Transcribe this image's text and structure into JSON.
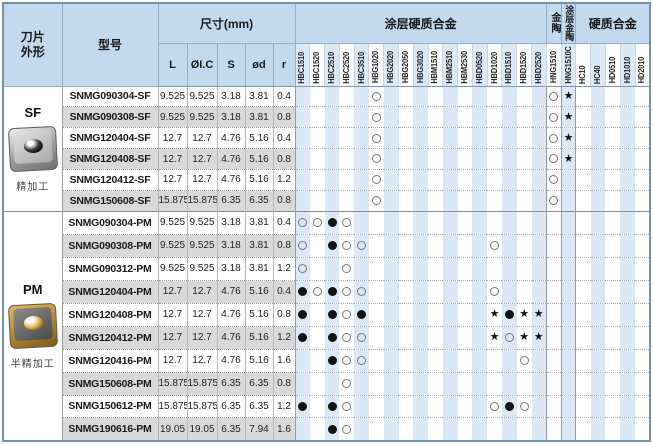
{
  "colors": {
    "header_bg": "#c3d9ee",
    "column_stripe": "#dbe9f6",
    "alt_row": "#d9d9d9",
    "table_border": "#7292ad",
    "mark_black": "#121212",
    "mark_ring_gray": "#787878"
  },
  "header": {
    "blade_shape": "刀片\n外形",
    "model": "型号",
    "dimensions": "尺寸(mm)",
    "dim_cols": [
      "L",
      "ØI.C",
      "S",
      "ød",
      "r"
    ],
    "groups": {
      "coated_carbide": "涂层硬质合金",
      "cermet": "金陶",
      "coated_cermet": "涂层金陶",
      "carbide": "硬质合金"
    },
    "group_spans": {
      "coated_carbide": 17,
      "cermet": 1,
      "coated_cermet": 1,
      "carbide": 5
    },
    "grade_cols": [
      "HBC1510",
      "HBC1520",
      "HBC2510",
      "HBC2520",
      "HBC3510",
      "HBG1020",
      "HBG2020",
      "HBG2050",
      "HBG3020",
      "HBM1510",
      "HBM2510",
      "HBM2530",
      "HBD0520",
      "HBD1020",
      "HBD1510",
      "HBD1520",
      "HBD2520",
      "HNG1510",
      "HNG1510C",
      "HC10",
      "HC40",
      "HD0510",
      "HD1010",
      "HD2010"
    ]
  },
  "symbols": {
    "o": "open-circle",
    "f": "filled-circle",
    "s": "star"
  },
  "sections": [
    {
      "code": "SF",
      "process": "精加工",
      "insert_style": "silver",
      "rows": [
        {
          "model": "SNMG090304-SF",
          "dims": [
            "9.525",
            "9.525",
            "3.18",
            "3.81",
            "0.4"
          ],
          "marks": {
            "HBG1020": "o",
            "HNG1510": "o",
            "HNG1510C": "s"
          }
        },
        {
          "model": "SNMG090308-SF",
          "dims": [
            "9.525",
            "9.525",
            "3.18",
            "3.81",
            "0.8"
          ],
          "marks": {
            "HBG1020": "o",
            "HNG1510": "o",
            "HNG1510C": "s"
          }
        },
        {
          "model": "SNMG120404-SF",
          "dims": [
            "12.7",
            "12.7",
            "4.76",
            "5.16",
            "0.4"
          ],
          "marks": {
            "HBG1020": "o",
            "HNG1510": "o",
            "HNG1510C": "s"
          }
        },
        {
          "model": "SNMG120408-SF",
          "dims": [
            "12.7",
            "12.7",
            "4.76",
            "5.16",
            "0.8"
          ],
          "marks": {
            "HBG1020": "o",
            "HNG1510": "o",
            "HNG1510C": "s"
          }
        },
        {
          "model": "SNMG120412-SF",
          "dims": [
            "12.7",
            "12.7",
            "4.76",
            "5.16",
            "1.2"
          ],
          "marks": {
            "HBG1020": "o",
            "HNG1510": "o"
          }
        },
        {
          "model": "SNMG150608-SF",
          "dims": [
            "15.875",
            "15.875",
            "6.35",
            "6.35",
            "0.8"
          ],
          "marks": {
            "HBG1020": "o",
            "HNG1510": "o"
          }
        }
      ]
    },
    {
      "code": "PM",
      "process": "半精加工",
      "insert_style": "gold",
      "rows": [
        {
          "model": "SNMG090304-PM",
          "dims": [
            "9.525",
            "9.525",
            "3.18",
            "3.81",
            "0.4"
          ],
          "marks": {
            "HBC1510": "o",
            "HBC1520": "o",
            "HBC2510": "f",
            "HBC2520": "o"
          }
        },
        {
          "model": "SNMG090308-PM",
          "dims": [
            "9.525",
            "9.525",
            "3.18",
            "3.81",
            "0.8"
          ],
          "marks": {
            "HBC1510": "o",
            "HBC2510": "f",
            "HBC2520": "o",
            "HBC3510": "o",
            "HBD1020": "o"
          }
        },
        {
          "model": "SNMG090312-PM",
          "dims": [
            "9.525",
            "9.525",
            "3.18",
            "3.81",
            "1.2"
          ],
          "marks": {
            "HBC1510": "o",
            "HBC2520": "o"
          }
        },
        {
          "model": "SNMG120404-PM",
          "dims": [
            "12.7",
            "12.7",
            "4.76",
            "5.16",
            "0.4"
          ],
          "marks": {
            "HBC1510": "f",
            "HBC1520": "o",
            "HBC2510": "f",
            "HBC2520": "o",
            "HBC3510": "o",
            "HBD1020": "o"
          }
        },
        {
          "model": "SNMG120408-PM",
          "dims": [
            "12.7",
            "12.7",
            "4.76",
            "5.16",
            "0.8"
          ],
          "marks": {
            "HBC1510": "f",
            "HBC2510": "f",
            "HBC2520": "o",
            "HBC3510": "f",
            "HBD1020": "s",
            "HBD1510": "f",
            "HBD1520": "s",
            "HBD2520": "s"
          }
        },
        {
          "model": "SNMG120412-PM",
          "dims": [
            "12.7",
            "12.7",
            "4.76",
            "5.16",
            "1.2"
          ],
          "marks": {
            "HBC1510": "f",
            "HBC2510": "f",
            "HBC2520": "o",
            "HBC3510": "o",
            "HBD1020": "s",
            "HBD1510": "o",
            "HBD1520": "s",
            "HBD2520": "s"
          }
        },
        {
          "model": "SNMG120416-PM",
          "dims": [
            "12.7",
            "12.7",
            "4.76",
            "5.16",
            "1.6"
          ],
          "marks": {
            "HBC2510": "f",
            "HBC2520": "o",
            "HBC3510": "o",
            "HBD1520": "o"
          }
        },
        {
          "model": "SNMG150608-PM",
          "dims": [
            "15.875",
            "15.875",
            "6.35",
            "6.35",
            "0.8"
          ],
          "marks": {
            "HBC2520": "o"
          }
        },
        {
          "model": "SNMG150612-PM",
          "dims": [
            "15.875",
            "15.875",
            "6.35",
            "6.35",
            "1.2"
          ],
          "marks": {
            "HBC1510": "f",
            "HBC2510": "f",
            "HBC2520": "o",
            "HBD1020": "o",
            "HBD1510": "f",
            "HBD1520": "o"
          }
        },
        {
          "model": "SNMG190616-PM",
          "dims": [
            "19.05",
            "19.05",
            "6.35",
            "7.94",
            "1.6"
          ],
          "marks": {
            "HBC2510": "f",
            "HBC2520": "o"
          }
        }
      ]
    }
  ]
}
